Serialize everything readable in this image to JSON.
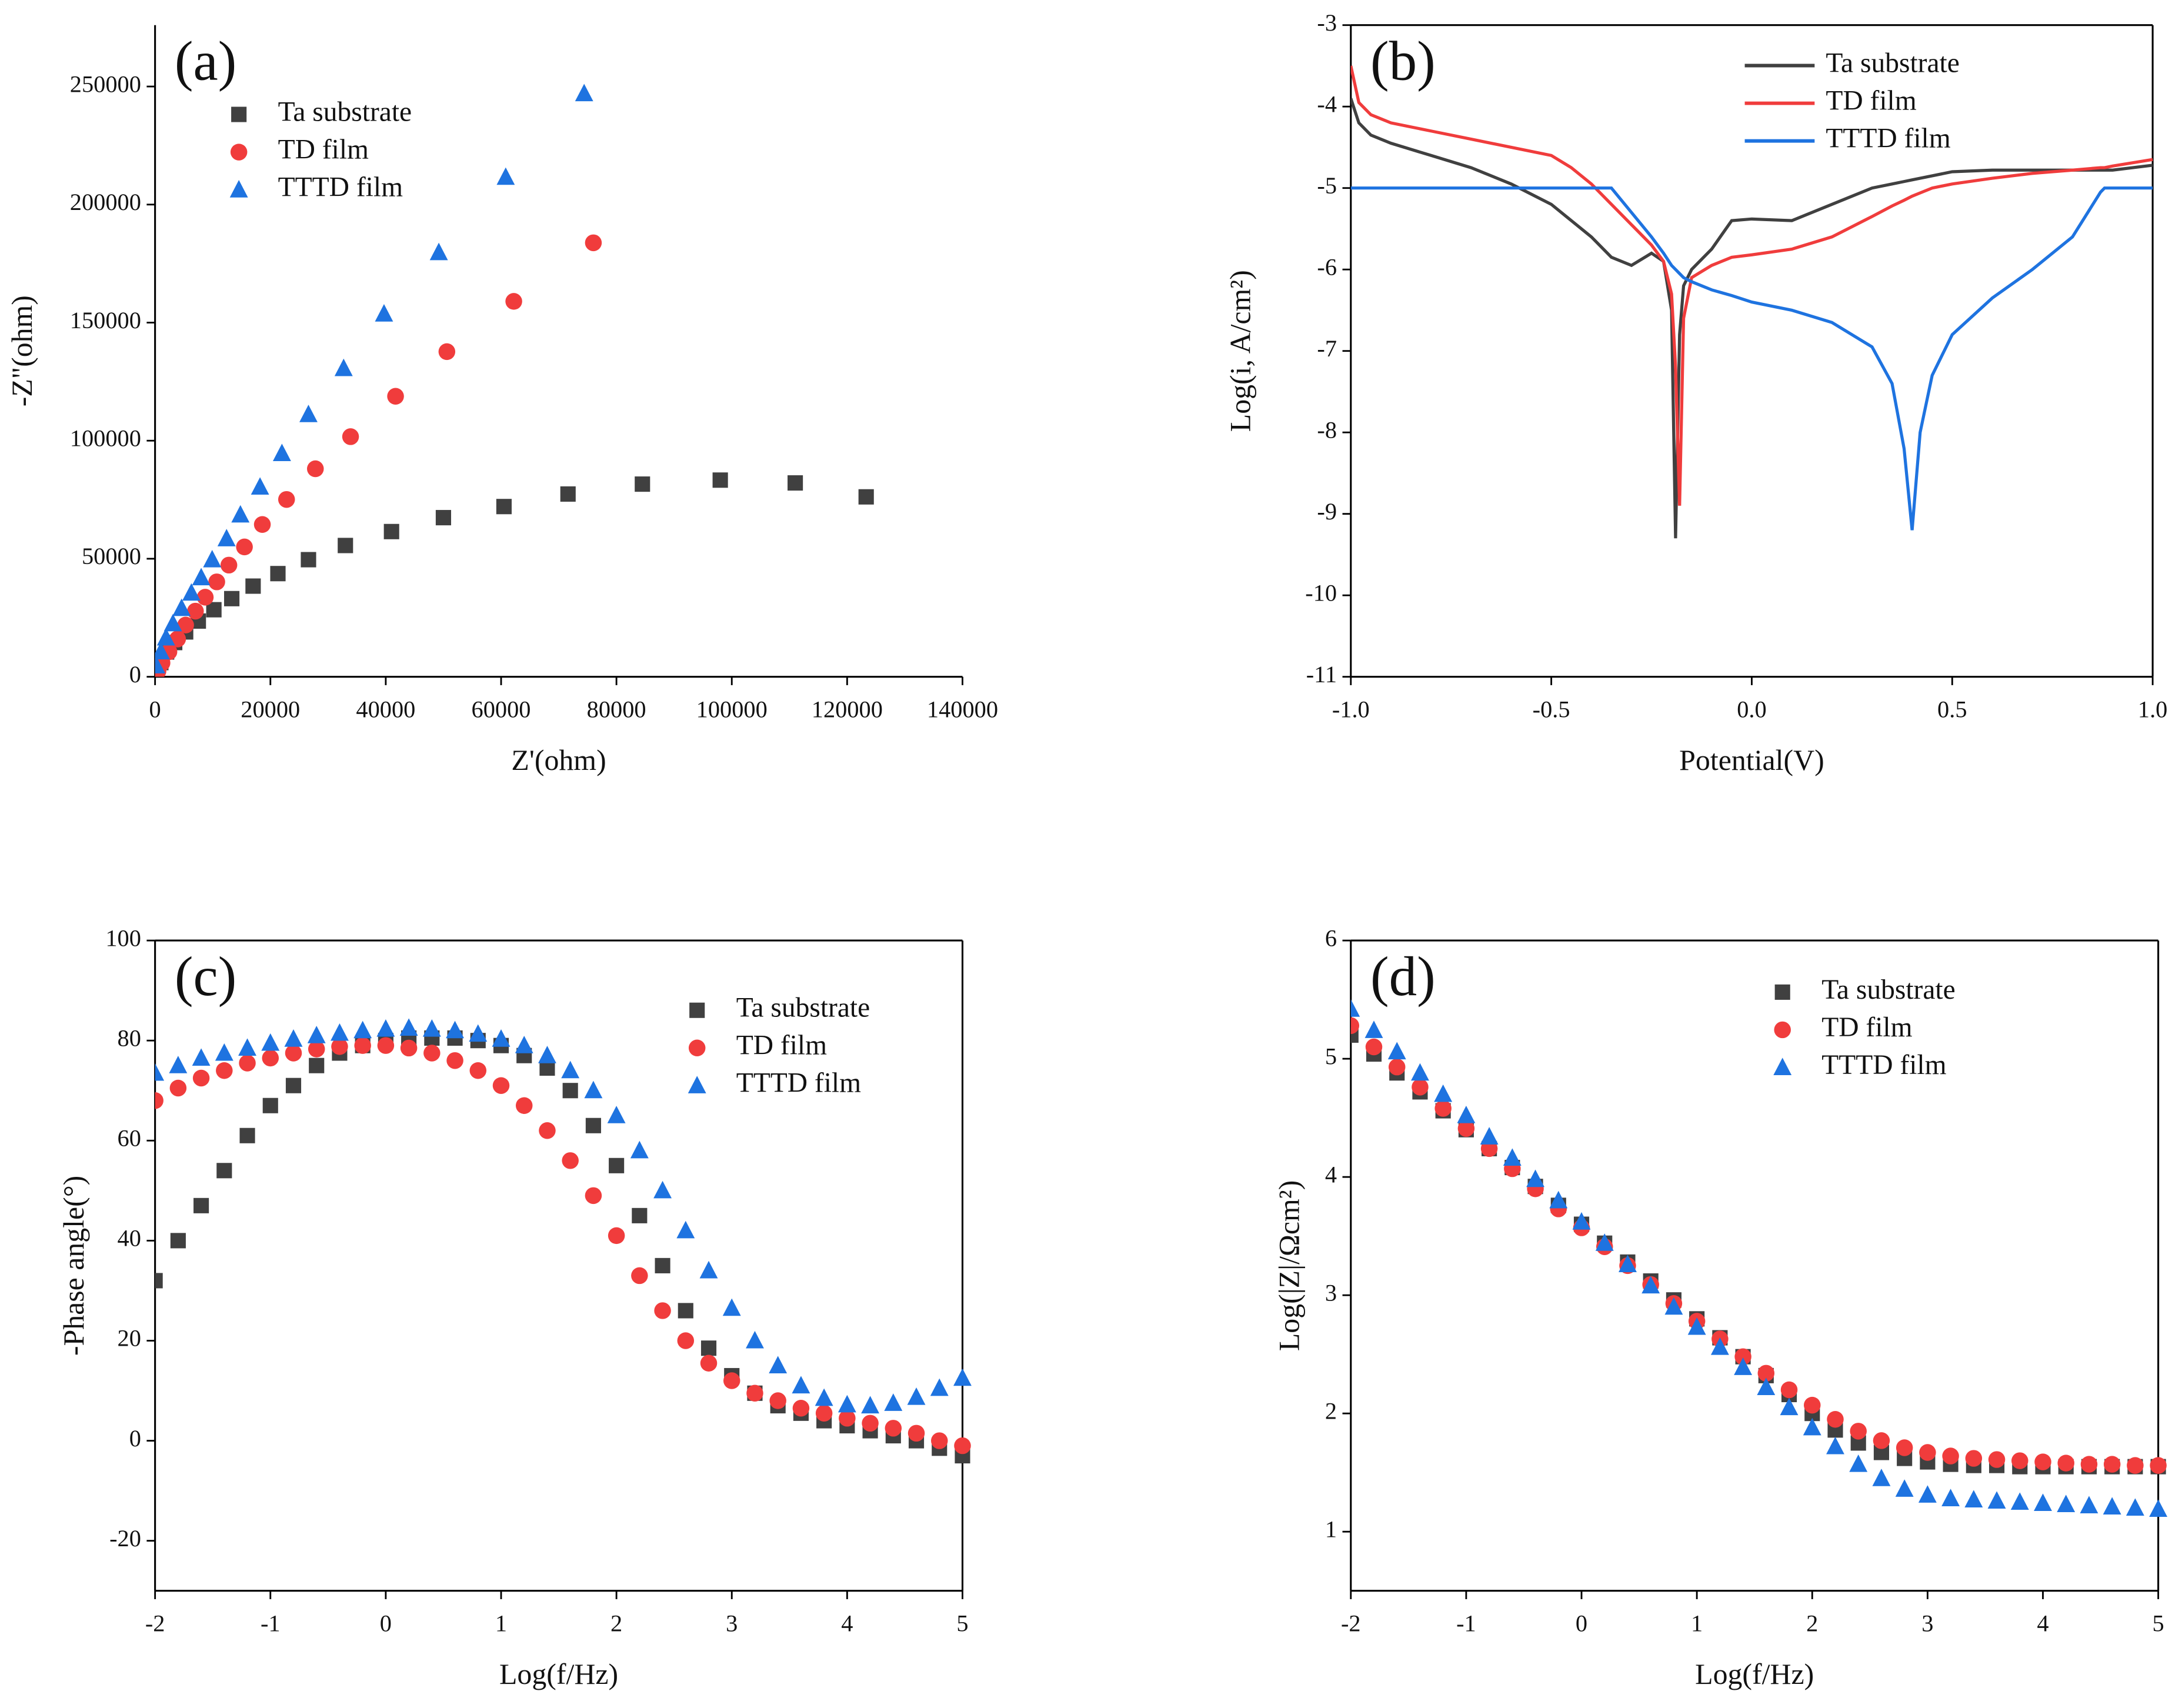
{
  "chart_data": [
    {
      "type": "scatter",
      "panel_label": "(a)",
      "x_label": "Z'(ohm)",
      "y_label": "-Z\"(ohm)",
      "legend": "upper left",
      "xlim": [
        0,
        140000
      ],
      "ylim": [
        0,
        276000
      ],
      "xticks": [
        0,
        20000,
        40000,
        60000,
        80000,
        100000,
        120000,
        140000
      ],
      "yticks": [
        0,
        50000,
        100000,
        150000,
        200000,
        250000
      ],
      "series": [
        {
          "name": "Ta substrate",
          "color": "#404040",
          "marker": "square",
          "x": [
            123300,
            111000,
            98000,
            84500,
            71600,
            60500,
            50000,
            41000,
            33000,
            26600,
            21300,
            17000,
            13300,
            10200,
            7500,
            5300,
            3400,
            2000,
            1000,
            300
          ],
          "values": [
            76200,
            82100,
            83300,
            81600,
            77400,
            72100,
            67400,
            61500,
            55600,
            49600,
            43700,
            38400,
            33100,
            28400,
            23600,
            19000,
            14500,
            10500,
            6000,
            2000
          ]
        },
        {
          "name": "TD film",
          "color": "#f03c3c",
          "marker": "circle",
          "x": [
            76000,
            62200,
            50600,
            41700,
            33900,
            27800,
            22800,
            18600,
            15500,
            12800,
            10700,
            8700,
            7000,
            5300,
            3900,
            2400,
            1200,
            500
          ],
          "values": [
            183800,
            159000,
            137700,
            118800,
            101700,
            88100,
            75100,
            64500,
            55000,
            47300,
            40200,
            33700,
            27800,
            21900,
            16000,
            10600,
            5900,
            2400
          ]
        },
        {
          "name": "TTTD film",
          "color": "#1e73e0",
          "marker": "triangle",
          "x": [
            74400,
            60800,
            49200,
            39700,
            32700,
            26600,
            22000,
            18200,
            14800,
            12400,
            9900,
            8000,
            6300,
            4600,
            3100,
            1900,
            1000,
            200
          ],
          "values": [
            247000,
            211600,
            179700,
            153700,
            130600,
            111100,
            94600,
            80400,
            68600,
            58500,
            49600,
            42000,
            35500,
            29000,
            22500,
            16500,
            10600,
            4700
          ]
        }
      ]
    },
    {
      "type": "line",
      "panel_label": "(b)",
      "x_label": "Potential(V)",
      "y_label": "Log(i, A/cm²)",
      "legend": "upper center",
      "xlim": [
        -1,
        1
      ],
      "ylim": [
        -11,
        -3
      ],
      "xticks": [
        {
          "value": -1,
          "label": "-1.0"
        },
        -0.5,
        {
          "value": 0,
          "label": "0.0"
        },
        0.5,
        {
          "value": 1,
          "label": "1.0"
        }
      ],
      "yticks": [
        -3,
        -4,
        -5,
        -6,
        -7,
        -8,
        -9,
        -10,
        -11
      ],
      "x": [
        -1,
        -0.98,
        -0.95,
        -0.9,
        -0.8,
        -0.7,
        -0.6,
        -0.5,
        -0.45,
        -0.4,
        -0.35,
        -0.3,
        -0.25,
        -0.22,
        -0.2,
        -0.19,
        -0.18,
        -0.17,
        -0.15,
        -0.1,
        -0.05,
        0,
        0.1,
        0.2,
        0.3,
        0.35,
        0.38,
        0.4,
        0.42,
        0.45,
        0.5,
        0.6,
        0.7,
        0.8,
        0.87,
        0.88,
        0.9,
        1
      ],
      "series": [
        {
          "name": "Ta substrate",
          "color": "#404040",
          "values": [
            -3.9,
            -4.2,
            -4.35,
            -4.45,
            -4.6,
            -4.75,
            -4.95,
            -5.2,
            -5.4,
            -5.6,
            -5.85,
            -5.95,
            -5.8,
            -5.9,
            -6.5,
            -9.3,
            -6.8,
            -6.2,
            -6.0,
            -5.75,
            -5.4,
            -5.38,
            -5.4,
            -5.2,
            -5.0,
            -4.95,
            -4.92,
            -4.9,
            -4.88,
            -4.85,
            -4.8,
            -4.78,
            -4.78,
            -4.78,
            -4.78,
            -4.78,
            -4.78,
            -4.72
          ]
        },
        {
          "name": "TD film",
          "color": "#f03c3c",
          "values": [
            -3.5,
            -3.95,
            -4.1,
            -4.2,
            -4.3,
            -4.4,
            -4.5,
            -4.6,
            -4.75,
            -4.95,
            -5.2,
            -5.45,
            -5.7,
            -5.9,
            -6.3,
            -7.2,
            -8.9,
            -6.6,
            -6.1,
            -5.95,
            -5.85,
            -5.82,
            -5.75,
            -5.6,
            -5.35,
            -5.22,
            -5.15,
            -5.1,
            -5.06,
            -5.0,
            -4.95,
            -4.88,
            -4.82,
            -4.78,
            -4.75,
            -4.75,
            -4.73,
            -4.65
          ]
        },
        {
          "name": "TTTD film",
          "color": "#1e73e0",
          "values": [
            -5,
            -5,
            -5,
            -5,
            -5,
            -5,
            -5,
            -5,
            -5,
            -5,
            -5,
            -5.3,
            -5.6,
            -5.8,
            -5.95,
            -6.0,
            -6.05,
            -6.1,
            -6.15,
            -6.25,
            -6.32,
            -6.4,
            -6.5,
            -6.65,
            -6.95,
            -7.4,
            -8.2,
            -9.2,
            -8.0,
            -7.3,
            -6.8,
            -6.35,
            -6.0,
            -5.6,
            -5.05,
            -5,
            -5,
            -5
          ]
        }
      ]
    },
    {
      "type": "scatter",
      "panel_label": "(c)",
      "x_label": "Log(f/Hz)",
      "y_label": "-Phase angle(°)",
      "legend": "upper right",
      "xlim": [
        -2,
        5
      ],
      "ylim": [
        -30,
        100
      ],
      "xticks": [
        -2,
        -1,
        0,
        1,
        2,
        3,
        4,
        5
      ],
      "yticks": [
        -20,
        0,
        20,
        40,
        60,
        80,
        100
      ],
      "x": [
        -2,
        -1.8,
        -1.6,
        -1.4,
        -1.2,
        -1,
        -0.8,
        -0.6,
        -0.4,
        -0.2,
        0,
        0.2,
        0.4,
        0.6,
        0.8,
        1,
        1.2,
        1.4,
        1.6,
        1.8,
        2,
        2.2,
        2.4,
        2.6,
        2.8,
        3,
        3.2,
        3.4,
        3.6,
        3.8,
        4,
        4.2,
        4.4,
        4.6,
        4.8,
        5
      ],
      "series": [
        {
          "name": "Ta substrate",
          "color": "#404040",
          "marker": "square",
          "values": [
            32,
            40,
            47,
            54,
            61,
            67,
            71,
            75,
            77.5,
            79,
            80,
            80.5,
            80.5,
            80.5,
            80,
            79,
            77,
            74.5,
            70,
            63,
            55,
            45,
            35,
            26,
            18.5,
            13,
            9.5,
            7,
            5.5,
            4,
            3,
            2,
            1,
            0,
            -1.5,
            -3
          ]
        },
        {
          "name": "TD film",
          "color": "#f03c3c",
          "marker": "circle",
          "values": [
            68,
            70.5,
            72.5,
            74,
            75.5,
            76.5,
            77.5,
            78.3,
            78.8,
            79,
            79,
            78.5,
            77.5,
            76,
            74,
            71,
            67,
            62,
            56,
            49,
            41,
            33,
            26,
            20,
            15.5,
            12,
            9.5,
            8,
            6.5,
            5.5,
            4.5,
            3.5,
            2.5,
            1.5,
            0,
            -1
          ]
        },
        {
          "name": "TTTD film",
          "color": "#1e73e0",
          "marker": "triangle",
          "values": [
            73.5,
            75,
            76.5,
            77.5,
            78.5,
            79.5,
            80.3,
            81,
            81.5,
            82,
            82.3,
            82.5,
            82.3,
            82,
            81.3,
            80.3,
            79,
            77,
            74,
            70,
            65,
            58,
            50,
            42,
            34,
            26.5,
            20,
            15,
            11,
            8.5,
            7.2,
            7,
            7.5,
            8.7,
            10.5,
            12.5
          ]
        }
      ]
    },
    {
      "type": "scatter",
      "panel_label": "(d)",
      "x_label": "Log(f/Hz)",
      "y_label": "Log(|Z|/Ωcm²)",
      "legend": "upper center",
      "xlim": [
        -2,
        5
      ],
      "ylim": [
        0.5,
        6
      ],
      "xticks": [
        -2,
        -1,
        0,
        1,
        2,
        3,
        4,
        5
      ],
      "yticks": [
        1,
        2,
        3,
        4,
        5,
        6
      ],
      "x": [
        -2,
        -1.8,
        -1.6,
        -1.4,
        -1.2,
        -1,
        -0.8,
        -0.6,
        -0.4,
        -0.2,
        0,
        0.2,
        0.4,
        0.6,
        0.8,
        1,
        1.2,
        1.4,
        1.6,
        1.8,
        2,
        2.2,
        2.4,
        2.6,
        2.8,
        3,
        3.2,
        3.4,
        3.6,
        3.8,
        4,
        4.2,
        4.4,
        4.6,
        4.8,
        5
      ],
      "series": [
        {
          "name": "Ta substrate",
          "color": "#404040",
          "marker": "square",
          "values": [
            5.2,
            5.04,
            4.88,
            4.72,
            4.56,
            4.4,
            4.24,
            4.08,
            3.92,
            3.76,
            3.6,
            3.44,
            3.28,
            3.12,
            2.96,
            2.8,
            2.64,
            2.48,
            2.32,
            2.16,
            2.0,
            1.86,
            1.75,
            1.67,
            1.62,
            1.59,
            1.57,
            1.56,
            1.56,
            1.55,
            1.55,
            1.55,
            1.55,
            1.55,
            1.55,
            1.55
          ]
        },
        {
          "name": "TD film",
          "color": "#f03c3c",
          "marker": "circle",
          "values": [
            5.28,
            5.1,
            4.93,
            4.76,
            4.58,
            4.41,
            4.24,
            4.07,
            3.9,
            3.73,
            3.57,
            3.41,
            3.25,
            3.09,
            2.93,
            2.78,
            2.63,
            2.48,
            2.34,
            2.2,
            2.07,
            1.95,
            1.85,
            1.77,
            1.71,
            1.67,
            1.64,
            1.62,
            1.61,
            1.6,
            1.59,
            1.58,
            1.57,
            1.57,
            1.56,
            1.56
          ]
        },
        {
          "name": "TTTD film",
          "color": "#1e73e0",
          "marker": "triangle",
          "values": [
            5.42,
            5.24,
            5.06,
            4.88,
            4.7,
            4.52,
            4.34,
            4.16,
            3.98,
            3.8,
            3.62,
            3.44,
            3.26,
            3.08,
            2.9,
            2.73,
            2.56,
            2.39,
            2.22,
            2.05,
            1.88,
            1.72,
            1.57,
            1.45,
            1.36,
            1.31,
            1.28,
            1.27,
            1.26,
            1.25,
            1.24,
            1.23,
            1.22,
            1.21,
            1.2,
            1.19
          ]
        }
      ]
    }
  ]
}
